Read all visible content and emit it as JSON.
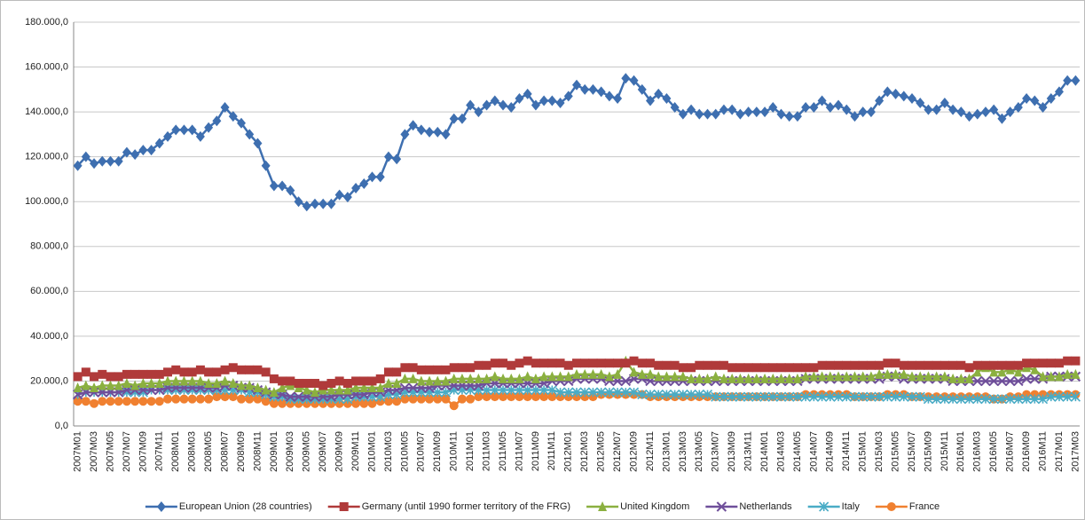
{
  "chart_data": {
    "type": "line",
    "categories": [
      "2007M01",
      null,
      "2007M03",
      null,
      "2007M05",
      null,
      "2007M07",
      null,
      "2007M09",
      null,
      "2007M11",
      null,
      "2008M01",
      null,
      "2008M03",
      null,
      "2008M05",
      null,
      "2008M07",
      null,
      "2008M09",
      null,
      "2008M11",
      null,
      "2009M01",
      null,
      "2009M03",
      null,
      "2009M05",
      null,
      "2009M07",
      null,
      "2009M09",
      null,
      "2009M11",
      null,
      "2010M01",
      null,
      "2010M03",
      null,
      "2010M05",
      null,
      "2010M07",
      null,
      "2010M09",
      null,
      "2010M11",
      null,
      "2011M01",
      null,
      "2011M03",
      null,
      "2011M05",
      null,
      "2011M07",
      null,
      "2011M09",
      null,
      "2011M11",
      null,
      "2012M01",
      null,
      "2012M03",
      null,
      "2012M05",
      null,
      "2012M07",
      null,
      "2012M09",
      null,
      "2012M11",
      null,
      "2013M01",
      null,
      "2013M03",
      null,
      "2013M05",
      null,
      "2013M07",
      null,
      "2013M09",
      null,
      "2013M11",
      null,
      "2014M01",
      null,
      "2014M03",
      null,
      "2014M05",
      null,
      "2014M07",
      null,
      "2014M09",
      null,
      "2014M11",
      null,
      "2015M01",
      null,
      "2015M03",
      null,
      "2015M05",
      null,
      "2015M07",
      null,
      "2015M09",
      null,
      "2015M11",
      null,
      "2016M01",
      null,
      "2016M03",
      null,
      "2016M05",
      null,
      "2016M07",
      null,
      "2016M09",
      null,
      "2016M11",
      null,
      "2017M01",
      null,
      "2017M03"
    ],
    "series": [
      {
        "name": "European Union (28 countries)",
        "color": "#3e6fb0",
        "marker": "diamond",
        "values": [
          116000,
          120000,
          117000,
          118000,
          118000,
          118000,
          122000,
          121000,
          123000,
          123000,
          126000,
          129000,
          132000,
          132000,
          132000,
          129000,
          133000,
          136000,
          142000,
          138000,
          135000,
          130000,
          126000,
          116000,
          107000,
          107000,
          105000,
          100000,
          98000,
          99000,
          99000,
          99000,
          103000,
          102000,
          106000,
          108000,
          111000,
          111000,
          120000,
          119000,
          130000,
          134000,
          132000,
          131000,
          131000,
          130000,
          137000,
          137000,
          143000,
          140000,
          143000,
          145000,
          143000,
          142000,
          146000,
          148000,
          143000,
          145000,
          145000,
          144000,
          147000,
          152000,
          150000,
          150000,
          149000,
          147000,
          146000,
          155000,
          154000,
          150000,
          145000,
          148000,
          146000,
          142000,
          139000,
          141000,
          139000,
          139000,
          139000,
          141000,
          141000,
          139000,
          140000,
          140000,
          140000,
          142000,
          139000,
          138000,
          138000,
          142000,
          142000,
          145000,
          142000,
          143000,
          141000,
          138000,
          140000,
          140000,
          145000,
          149000,
          148000,
          147000,
          146000,
          144000,
          141000,
          141000,
          144000,
          141000,
          140000,
          138000,
          139000,
          140000,
          141000,
          137000,
          140000,
          142000,
          146000,
          145000,
          142000,
          146000,
          149000,
          154000,
          154000
        ]
      },
      {
        "name": "Germany (until 1990 former territory of the FRG)",
        "color": "#b03a3a",
        "marker": "square",
        "values": [
          22000,
          24000,
          22000,
          23000,
          22000,
          22000,
          23000,
          23000,
          23000,
          23000,
          23000,
          24000,
          25000,
          24000,
          24000,
          25000,
          24000,
          24000,
          25000,
          26000,
          25000,
          25000,
          25000,
          24000,
          21000,
          20000,
          20000,
          19000,
          19000,
          19000,
          18000,
          19000,
          20000,
          19000,
          20000,
          20000,
          20000,
          21000,
          24000,
          24000,
          26000,
          26000,
          25000,
          25000,
          25000,
          25000,
          26000,
          26000,
          26000,
          27000,
          27000,
          28000,
          28000,
          27000,
          28000,
          29000,
          28000,
          28000,
          28000,
          28000,
          27000,
          28000,
          28000,
          28000,
          28000,
          28000,
          28000,
          28000,
          29000,
          28000,
          28000,
          27000,
          27000,
          27000,
          26000,
          26000,
          27000,
          27000,
          27000,
          27000,
          26000,
          26000,
          26000,
          26000,
          26000,
          26000,
          26000,
          26000,
          26000,
          26000,
          26000,
          27000,
          27000,
          27000,
          27000,
          27000,
          27000,
          27000,
          27000,
          28000,
          28000,
          27000,
          27000,
          27000,
          27000,
          27000,
          27000,
          27000,
          27000,
          26000,
          27000,
          27000,
          27000,
          27000,
          27000,
          27000,
          28000,
          28000,
          28000,
          28000,
          28000,
          29000,
          29000
        ]
      },
      {
        "name": "United Kingdom",
        "color": "#8bb040",
        "marker": "triangle",
        "values": [
          17000,
          18000,
          17000,
          18000,
          18000,
          18000,
          19000,
          18000,
          19000,
          19000,
          19000,
          20000,
          20000,
          20000,
          20000,
          20000,
          19000,
          19000,
          20000,
          19000,
          18000,
          18000,
          17000,
          16000,
          15000,
          17000,
          18000,
          17000,
          16000,
          15000,
          16000,
          16000,
          16000,
          16000,
          17000,
          17000,
          17000,
          17000,
          19000,
          19000,
          21000,
          21000,
          20000,
          20000,
          20000,
          20000,
          21000,
          21000,
          21000,
          21000,
          21000,
          22000,
          21000,
          21000,
          21000,
          22000,
          21000,
          22000,
          22000,
          22000,
          22000,
          23000,
          23000,
          23000,
          23000,
          22000,
          23000,
          29000,
          24000,
          23000,
          23000,
          22000,
          22000,
          22000,
          22000,
          21000,
          21000,
          21000,
          22000,
          21000,
          21000,
          21000,
          21000,
          21000,
          21000,
          21000,
          21000,
          21000,
          21000,
          22000,
          22000,
          22000,
          22000,
          22000,
          22000,
          22000,
          22000,
          22000,
          23000,
          23000,
          23000,
          23000,
          22000,
          22000,
          22000,
          22000,
          22000,
          21000,
          21000,
          21000,
          24000,
          26000,
          24000,
          24000,
          25000,
          24000,
          26000,
          25000,
          22000,
          22000,
          22000,
          23000,
          23000
        ]
      },
      {
        "name": "Netherlands",
        "color": "#6f4f9a",
        "marker": "cross",
        "values": [
          14000,
          15000,
          15000,
          15000,
          15000,
          15000,
          16000,
          16000,
          16000,
          16000,
          16000,
          17000,
          17000,
          17000,
          17000,
          17000,
          17000,
          17000,
          18000,
          18000,
          17000,
          17000,
          16000,
          15000,
          14000,
          14000,
          13000,
          13000,
          13000,
          13000,
          13000,
          13000,
          14000,
          14000,
          14000,
          14000,
          15000,
          15000,
          16000,
          16000,
          17000,
          17000,
          17000,
          17000,
          18000,
          18000,
          18000,
          18000,
          18000,
          18000,
          19000,
          19000,
          19000,
          19000,
          19000,
          19000,
          19000,
          19000,
          20000,
          20000,
          20000,
          21000,
          21000,
          21000,
          21000,
          20000,
          20000,
          20000,
          21000,
          21000,
          20000,
          20000,
          20000,
          20000,
          20000,
          20000,
          20000,
          20000,
          20000,
          20000,
          20000,
          20000,
          20000,
          20000,
          20000,
          20000,
          20000,
          20000,
          20000,
          21000,
          21000,
          21000,
          21000,
          21000,
          21000,
          21000,
          21000,
          21000,
          21000,
          22000,
          22000,
          21000,
          21000,
          21000,
          21000,
          21000,
          21000,
          20000,
          20000,
          20000,
          20000,
          20000,
          20000,
          20000,
          20000,
          20000,
          21000,
          21000,
          21000,
          22000,
          22000,
          22000,
          22000
        ]
      },
      {
        "name": "Italy",
        "color": "#4aacc6",
        "marker": "star",
        "values": [
          14000,
          15000,
          15000,
          15000,
          15000,
          15000,
          15000,
          15000,
          15000,
          16000,
          16000,
          16000,
          16000,
          16000,
          16000,
          16000,
          16000,
          16000,
          16000,
          16000,
          16000,
          15000,
          15000,
          14000,
          13000,
          13000,
          12000,
          12000,
          12000,
          12000,
          12000,
          12000,
          12000,
          12000,
          13000,
          13000,
          13000,
          13000,
          14000,
          14000,
          15000,
          15000,
          15000,
          15000,
          15000,
          15000,
          16000,
          16000,
          16000,
          16000,
          16000,
          16000,
          16000,
          16000,
          16000,
          16000,
          16000,
          16000,
          16000,
          15000,
          15000,
          15000,
          15000,
          15000,
          15000,
          15000,
          15000,
          15000,
          15000,
          14000,
          14000,
          14000,
          14000,
          14000,
          14000,
          14000,
          14000,
          14000,
          13000,
          13000,
          13000,
          13000,
          13000,
          13000,
          13000,
          13000,
          13000,
          13000,
          13000,
          13000,
          13000,
          13000,
          13000,
          13000,
          13000,
          13000,
          13000,
          13000,
          13000,
          13000,
          13000,
          13000,
          13000,
          13000,
          12000,
          12000,
          12000,
          12000,
          12000,
          12000,
          12000,
          12000,
          12000,
          12000,
          12000,
          12000,
          12000,
          12000,
          12000,
          13000,
          13000,
          13000,
          13000
        ]
      },
      {
        "name": "France",
        "color": "#f08030",
        "marker": "circle",
        "values": [
          11000,
          11000,
          10000,
          11000,
          11000,
          11000,
          11000,
          11000,
          11000,
          11000,
          11000,
          12000,
          12000,
          12000,
          12000,
          12000,
          12000,
          13000,
          13000,
          13000,
          12000,
          12000,
          12000,
          11000,
          10000,
          10000,
          10000,
          10000,
          10000,
          10000,
          10000,
          10000,
          10000,
          10000,
          10000,
          10000,
          10000,
          11000,
          11000,
          11000,
          12000,
          12000,
          12000,
          12000,
          12000,
          12000,
          9000,
          12000,
          12000,
          13000,
          13000,
          13000,
          13000,
          13000,
          13000,
          13000,
          13000,
          13000,
          13000,
          13000,
          13000,
          13000,
          13000,
          13000,
          14000,
          14000,
          14000,
          14000,
          14000,
          14000,
          13000,
          13000,
          13000,
          13000,
          13000,
          13000,
          13000,
          13000,
          13000,
          13000,
          13000,
          13000,
          13000,
          13000,
          13000,
          13000,
          13000,
          13000,
          13000,
          14000,
          14000,
          14000,
          14000,
          14000,
          14000,
          13000,
          13000,
          13000,
          13000,
          14000,
          14000,
          14000,
          13000,
          13000,
          13000,
          13000,
          13000,
          13000,
          13000,
          13000,
          13000,
          13000,
          12000,
          12000,
          13000,
          13000,
          14000,
          14000,
          14000,
          14000,
          14000,
          14000,
          14000
        ]
      }
    ],
    "ylim": [
      0,
      180000
    ],
    "yticks": [
      {
        "value": 0,
        "label": "0,0"
      },
      {
        "value": 20000,
        "label": "20.000,0"
      },
      {
        "value": 40000,
        "label": "40.000,0"
      },
      {
        "value": 60000,
        "label": "60.000,0"
      },
      {
        "value": 80000,
        "label": "80.000,0"
      },
      {
        "value": 100000,
        "label": "100.000,0"
      },
      {
        "value": 120000,
        "label": "120.000,0"
      },
      {
        "value": 140000,
        "label": "140.000,0"
      },
      {
        "value": 160000,
        "label": "160.000,0"
      },
      {
        "value": 180000,
        "label": "180.000,0"
      }
    ],
    "grid": true,
    "legend": "bottom"
  }
}
